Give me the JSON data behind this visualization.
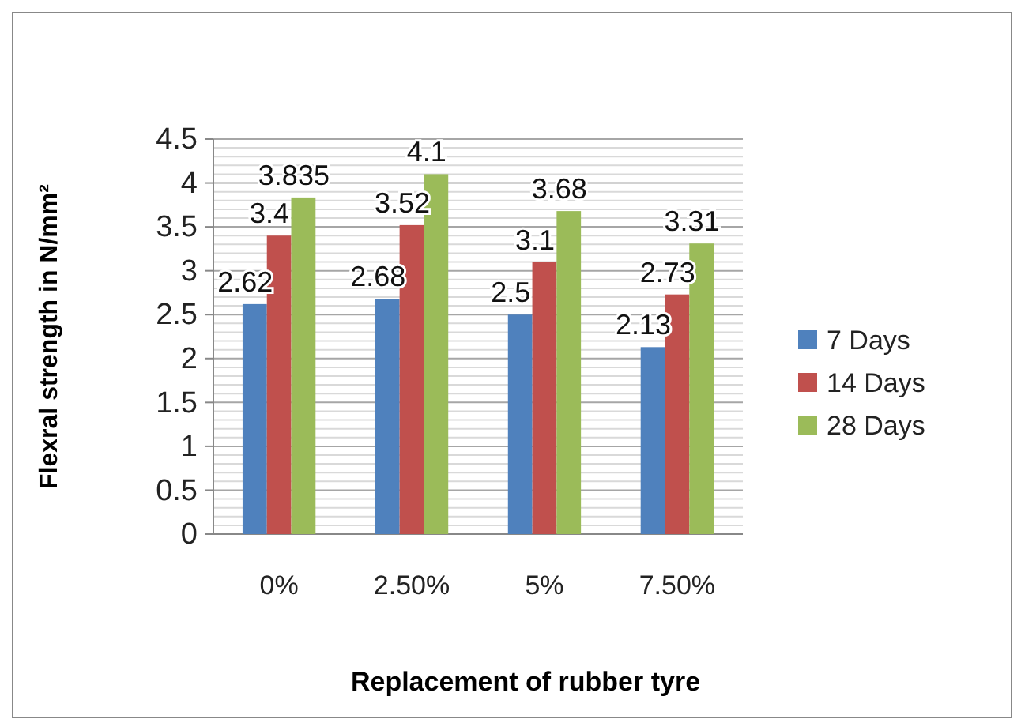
{
  "chart_data": {
    "type": "bar",
    "xlabel": "Replacement of rubber tyre",
    "ylabel": "Flexral strength in N/mm²",
    "categories": [
      "0%",
      "2.50%",
      "5%",
      "7.50%"
    ],
    "series": [
      {
        "name": "7 Days",
        "color": "#4f81bd",
        "values": [
          2.62,
          2.68,
          2.5,
          2.13
        ]
      },
      {
        "name": "14 Days",
        "color": "#c0504d",
        "values": [
          3.4,
          3.52,
          3.1,
          2.73
        ]
      },
      {
        "name": "28 Days",
        "color": "#9bbb59",
        "values": [
          3.835,
          4.1,
          3.68,
          3.31
        ]
      }
    ],
    "ylim": [
      0,
      4.5
    ],
    "yticks": [
      0,
      {
        "value": 0.1,
        "label": null
      },
      {
        "value": 0.2,
        "label": null
      },
      {
        "value": 0.3,
        "label": null
      },
      {
        "value": 0.4,
        "label": null
      },
      0.5,
      {
        "value": 0.6,
        "label": null
      },
      {
        "value": 0.7,
        "label": null
      },
      {
        "value": 0.8,
        "label": null
      },
      {
        "value": 0.9,
        "label": null
      },
      1,
      {
        "value": 1.1,
        "label": null
      },
      {
        "value": 1.2,
        "label": null
      },
      {
        "value": 1.3,
        "label": null
      },
      {
        "value": 1.4,
        "label": null
      },
      1.5,
      {
        "value": 1.6,
        "label": null
      },
      {
        "value": 1.7,
        "label": null
      },
      {
        "value": 1.8,
        "label": null
      },
      {
        "value": 1.9,
        "label": null
      },
      2,
      {
        "value": 2.1,
        "label": null
      },
      {
        "value": 2.2,
        "label": null
      },
      {
        "value": 2.3,
        "label": null
      },
      {
        "value": 2.4,
        "label": null
      },
      2.5,
      {
        "value": 2.6,
        "label": null
      },
      {
        "value": 2.7,
        "label": null
      },
      {
        "value": 2.8,
        "label": null
      },
      {
        "value": 2.9,
        "label": null
      },
      3,
      {
        "value": 3.1,
        "label": null
      },
      {
        "value": 3.2,
        "label": null
      },
      {
        "value": 3.3,
        "label": null
      },
      {
        "value": 3.4,
        "label": null
      },
      3.5,
      {
        "value": 3.6,
        "label": null
      },
      {
        "value": 3.7,
        "label": null
      },
      {
        "value": 3.8,
        "label": null
      },
      {
        "value": 3.9,
        "label": null
      },
      4,
      {
        "value": 4.1,
        "label": null
      },
      {
        "value": 4.2,
        "label": null
      },
      {
        "value": 4.3,
        "label": null
      },
      {
        "value": 4.4,
        "label": null
      },
      4.5
    ],
    "grid": "y",
    "legend": "right",
    "data_labels": true
  }
}
